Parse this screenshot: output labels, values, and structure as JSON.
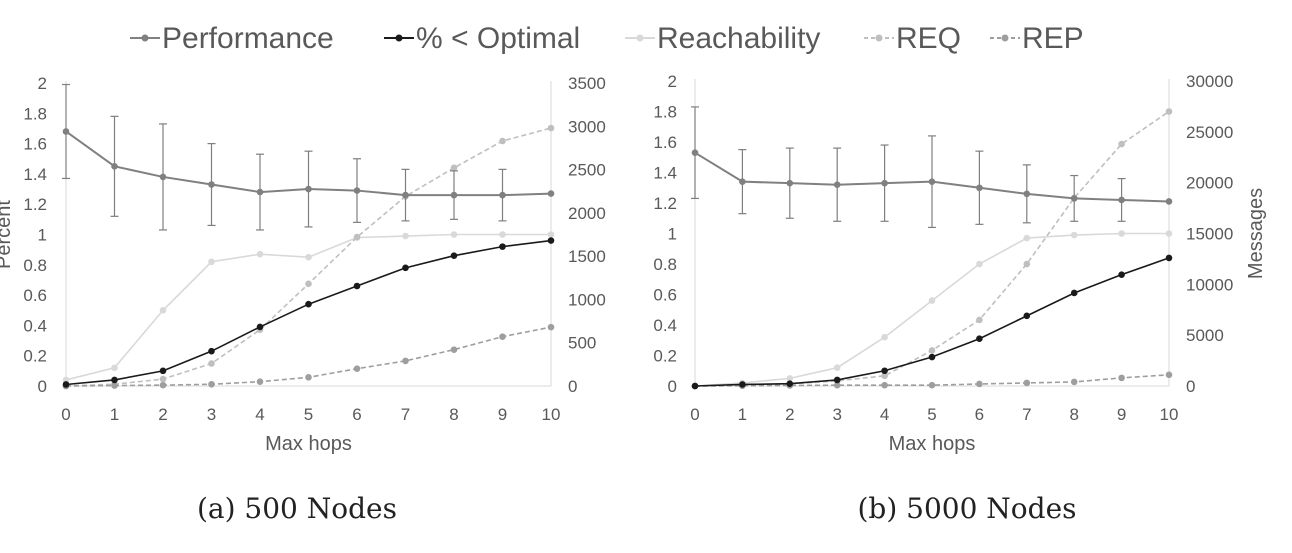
{
  "legend": [
    {
      "name": "Performance",
      "color": "#808080",
      "dashed": false
    },
    {
      "name": "% < Optimal",
      "color": "#1a1a1a",
      "dashed": false
    },
    {
      "name": "Reachability",
      "color": "#d9d9d9",
      "dashed": false
    },
    {
      "name": "REQ",
      "color": "#bfbfbf",
      "dashed": true
    },
    {
      "name": "REP",
      "color": "#9e9e9e",
      "dashed": true
    }
  ],
  "chart_data": [
    {
      "type": "line",
      "caption": "(a) 500 Nodes",
      "xlabel": "Max hops",
      "ylabel": "Percent",
      "ylabel_right": "",
      "x": [
        0,
        1,
        2,
        3,
        4,
        5,
        6,
        7,
        8,
        9,
        10
      ],
      "ylim": [
        0,
        2
      ],
      "yticks": [
        "0",
        "0.2",
        "0.4",
        "0.6",
        "0.8",
        "1",
        "1.2",
        "1.4",
        "1.6",
        "1.8",
        "2"
      ],
      "y2lim": [
        0,
        3500
      ],
      "y2ticks": [
        "0",
        "500",
        "1000",
        "1500",
        "2000",
        "2500",
        "3000",
        "3500"
      ],
      "series": [
        {
          "name": "Performance",
          "axis": "left",
          "values": [
            1.68,
            1.45,
            1.38,
            1.33,
            1.28,
            1.3,
            1.29,
            1.26,
            1.26,
            1.26,
            1.27
          ],
          "error": [
            0.31,
            0.33,
            0.35,
            0.27,
            0.25,
            0.25,
            0.21,
            0.17,
            0.16,
            0.17,
            0.0
          ]
        },
        {
          "name": "% < Optimal",
          "axis": "left",
          "values": [
            0.01,
            0.04,
            0.1,
            0.23,
            0.39,
            0.54,
            0.66,
            0.78,
            0.86,
            0.92,
            0.96
          ]
        },
        {
          "name": "Reachability",
          "axis": "left",
          "values": [
            0.04,
            0.12,
            0.5,
            0.82,
            0.87,
            0.85,
            0.98,
            0.99,
            1.0,
            1.0,
            1.0
          ]
        },
        {
          "name": "REQ",
          "axis": "right",
          "values": [
            0,
            20,
            80,
            260,
            650,
            1180,
            1720,
            2190,
            2520,
            2830,
            2980
          ]
        },
        {
          "name": "REP",
          "axis": "right",
          "values": [
            0,
            5,
            10,
            20,
            50,
            100,
            200,
            290,
            420,
            570,
            680
          ]
        }
      ]
    },
    {
      "type": "line",
      "caption": "(b) 5000 Nodes",
      "xlabel": "Max hops",
      "ylabel": "",
      "ylabel_right": "Messages",
      "x": [
        0,
        1,
        2,
        3,
        4,
        5,
        6,
        7,
        8,
        9,
        10
      ],
      "ylim": [
        0,
        2
      ],
      "yticks": [
        "0",
        "0.2",
        "0.4",
        "0.6",
        "0.8",
        "1",
        "1.2",
        "1.4",
        "1.6",
        "1.8",
        "2"
      ],
      "y2lim": [
        0,
        30000
      ],
      "y2ticks": [
        "0",
        "5000",
        "10000",
        "15000",
        "20000",
        "25000",
        "30000"
      ],
      "series": [
        {
          "name": "Performance",
          "axis": "left",
          "values": [
            1.53,
            1.34,
            1.33,
            1.32,
            1.33,
            1.34,
            1.3,
            1.26,
            1.23,
            1.22,
            1.21
          ],
          "error": [
            0.3,
            0.21,
            0.23,
            0.24,
            0.25,
            0.3,
            0.24,
            0.19,
            0.15,
            0.14,
            0.0
          ]
        },
        {
          "name": "% < Optimal",
          "axis": "left",
          "values": [
            0.0,
            0.01,
            0.015,
            0.04,
            0.1,
            0.19,
            0.31,
            0.46,
            0.61,
            0.73,
            0.84
          ]
        },
        {
          "name": "Reachability",
          "axis": "left",
          "values": [
            0.0,
            0.02,
            0.05,
            0.12,
            0.32,
            0.56,
            0.8,
            0.97,
            0.99,
            1.0,
            1.0
          ]
        },
        {
          "name": "REQ",
          "axis": "right",
          "values": [
            0,
            100,
            200,
            500,
            1000,
            3500,
            6500,
            12000,
            18500,
            23800,
            27000
          ]
        },
        {
          "name": "REP",
          "axis": "right",
          "values": [
            0,
            20,
            50,
            80,
            80,
            80,
            200,
            300,
            400,
            800,
            1100
          ]
        }
      ]
    }
  ]
}
